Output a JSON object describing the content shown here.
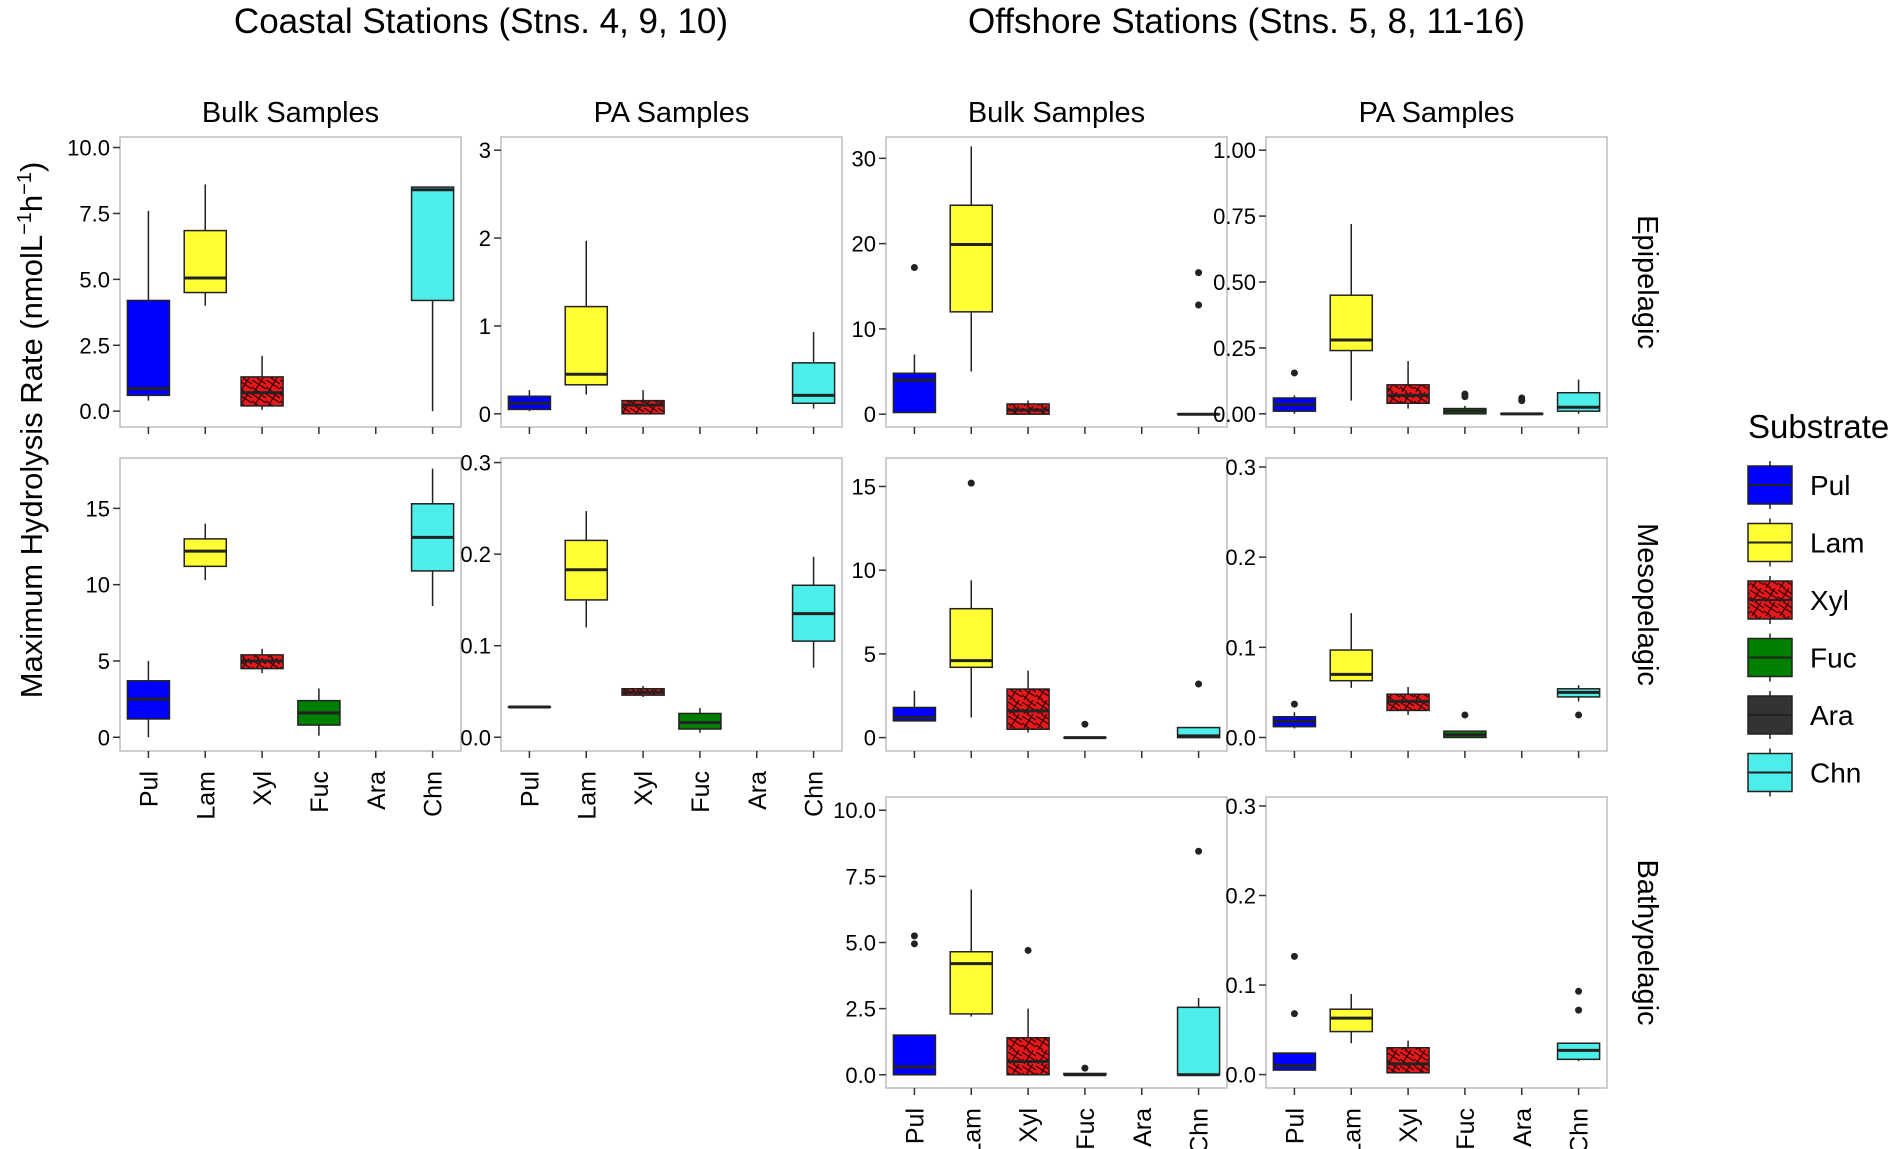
{
  "figure": {
    "y_axis_label": "Maximum Hydrolysis Rate (nmolL",
    "y_axis_unit_sup1": "−1",
    "y_axis_unit_h": "h",
    "y_axis_unit_sup2": "−1",
    "y_axis_close": ")",
    "legend_title": "Substrate"
  },
  "chart_data": {
    "type": "box",
    "categories": [
      "Pul",
      "Lam",
      "Xyl",
      "Fuc",
      "Ara",
      "Chn"
    ],
    "legend": [
      {
        "label": "Pul",
        "color": "#0000ff"
      },
      {
        "label": "Lam",
        "color": "#ffff33"
      },
      {
        "label": "Xyl",
        "color": "#e41a1c"
      },
      {
        "label": "Fuc",
        "color": "#008000"
      },
      {
        "label": "Ara",
        "color": "#333333"
      },
      {
        "label": "Chn",
        "color": "#4deeea"
      }
    ],
    "groups": [
      {
        "title": "Coastal Stations (Stns. 4, 9, 10)"
      },
      {
        "title": "Offshore Stations (Stns. 5, 8, 11-16)"
      }
    ],
    "column_titles": [
      "Bulk Samples",
      "PA Samples",
      "Bulk Samples",
      "PA Samples"
    ],
    "row_labels": [
      "Epipelagic",
      "Mesopelagic",
      "Bathypelagic"
    ],
    "panels": [
      {
        "id": "coastal-bulk-epi",
        "group": 0,
        "col": 0,
        "row": 0,
        "ylim": [
          -0.6,
          10.4
        ],
        "ticks": [
          0,
          2.5,
          5,
          7.5,
          10
        ],
        "tick_labels": [
          "0.0",
          "2.5",
          "5.0",
          "7.5",
          "10.0"
        ],
        "boxes": [
          {
            "cat": "Pul",
            "min": 0.4,
            "q1": 0.6,
            "median": 0.85,
            "q3": 4.2,
            "max": 7.6
          },
          {
            "cat": "Lam",
            "min": 4.0,
            "q1": 4.5,
            "median": 5.05,
            "q3": 6.85,
            "max": 8.6
          },
          {
            "cat": "Xyl",
            "min": 0.05,
            "q1": 0.2,
            "median": 0.7,
            "q3": 1.3,
            "max": 2.1
          },
          {
            "cat": "Chn",
            "min": 0.0,
            "q1": 4.2,
            "median": 8.4,
            "q3": 8.5,
            "max": 8.5
          }
        ]
      },
      {
        "id": "coastal-pa-epi",
        "group": 0,
        "col": 1,
        "row": 0,
        "ylim": [
          -0.15,
          3.15
        ],
        "ticks": [
          0,
          1,
          2,
          3
        ],
        "tick_labels": [
          "0",
          "1",
          "2",
          "3"
        ],
        "boxes": [
          {
            "cat": "Pul",
            "min": 0.03,
            "q1": 0.05,
            "median": 0.12,
            "q3": 0.2,
            "max": 0.27
          },
          {
            "cat": "Lam",
            "min": 0.22,
            "q1": 0.33,
            "median": 0.45,
            "q3": 1.22,
            "max": 1.97
          },
          {
            "cat": "Xyl",
            "min": 0.0,
            "q1": 0.0,
            "median": 0.1,
            "q3": 0.15,
            "max": 0.27
          },
          {
            "cat": "Chn",
            "min": 0.06,
            "q1": 0.12,
            "median": 0.21,
            "q3": 0.58,
            "max": 0.93
          }
        ]
      },
      {
        "id": "offshore-bulk-epi",
        "group": 1,
        "col": 2,
        "row": 0,
        "ylim": [
          -1.5,
          32.5
        ],
        "ticks": [
          0,
          10,
          20,
          30
        ],
        "tick_labels": [
          "0",
          "10",
          "20",
          "30"
        ],
        "boxes": [
          {
            "cat": "Pul",
            "min": 0.2,
            "q1": 0.2,
            "median": 4.0,
            "q3": 4.8,
            "max": 7.0,
            "outliers": [
              17.2
            ]
          },
          {
            "cat": "Lam",
            "min": 5.0,
            "q1": 12.0,
            "median": 19.9,
            "q3": 24.5,
            "max": 31.4
          },
          {
            "cat": "Xyl",
            "min": 0.0,
            "q1": 0.0,
            "median": 0.5,
            "q3": 1.2,
            "max": 1.6
          },
          {
            "cat": "Chn",
            "min": 0.0,
            "q1": 0.0,
            "median": 0.0,
            "q3": 0.0,
            "max": 0.0,
            "outliers": [
              12.8,
              16.6
            ]
          }
        ]
      },
      {
        "id": "offshore-pa-epi",
        "group": 1,
        "col": 3,
        "row": 0,
        "ylim": [
          -0.05,
          1.05
        ],
        "ticks": [
          0,
          0.25,
          0.5,
          0.75,
          1
        ],
        "tick_labels": [
          "0.00",
          "0.25",
          "0.50",
          "0.75",
          "1.00"
        ],
        "boxes": [
          {
            "cat": "Pul",
            "min": 0.0,
            "q1": 0.01,
            "median": 0.035,
            "q3": 0.06,
            "max": 0.07,
            "outliers": [
              0.155
            ]
          },
          {
            "cat": "Lam",
            "min": 0.05,
            "q1": 0.24,
            "median": 0.28,
            "q3": 0.45,
            "max": 0.72
          },
          {
            "cat": "Xyl",
            "min": 0.02,
            "q1": 0.04,
            "median": 0.07,
            "q3": 0.11,
            "max": 0.2
          },
          {
            "cat": "Fuc",
            "min": 0.0,
            "q1": 0.0,
            "median": 0.01,
            "q3": 0.02,
            "max": 0.03,
            "outliers": [
              0.065,
              0.075
            ]
          },
          {
            "cat": "Ara",
            "min": 0.0,
            "q1": 0.0,
            "median": 0.0,
            "q3": 0.0,
            "max": 0.0,
            "outliers": [
              0.05,
              0.06
            ]
          },
          {
            "cat": "Chn",
            "min": 0.0,
            "q1": 0.01,
            "median": 0.025,
            "q3": 0.08,
            "max": 0.13
          }
        ]
      },
      {
        "id": "coastal-bulk-meso",
        "group": 0,
        "col": 0,
        "row": 1,
        "ylim": [
          -0.9,
          18.3
        ],
        "ticks": [
          0,
          5,
          10,
          15
        ],
        "tick_labels": [
          "0",
          "5",
          "10",
          "15"
        ],
        "show_x_labels": true,
        "boxes": [
          {
            "cat": "Pul",
            "min": 0.0,
            "q1": 1.2,
            "median": 2.5,
            "q3": 3.7,
            "max": 5.0
          },
          {
            "cat": "Lam",
            "min": 10.3,
            "q1": 11.2,
            "median": 12.2,
            "q3": 13.0,
            "max": 14.0
          },
          {
            "cat": "Xyl",
            "min": 4.2,
            "q1": 4.5,
            "median": 5.0,
            "q3": 5.4,
            "max": 5.8
          },
          {
            "cat": "Fuc",
            "min": 0.1,
            "q1": 0.8,
            "median": 1.6,
            "q3": 2.4,
            "max": 3.2
          },
          {
            "cat": "Chn",
            "min": 8.6,
            "q1": 10.9,
            "median": 13.1,
            "q3": 15.3,
            "max": 17.6
          }
        ]
      },
      {
        "id": "coastal-pa-meso",
        "group": 0,
        "col": 1,
        "row": 1,
        "ylim": [
          -0.015,
          0.305
        ],
        "ticks": [
          0,
          0.1,
          0.2,
          0.3
        ],
        "tick_labels": [
          "0.0",
          "0.1",
          "0.2",
          "0.3"
        ],
        "show_x_labels": true,
        "boxes": [
          {
            "cat": "Pul",
            "min": 0.033,
            "q1": 0.033,
            "median": 0.033,
            "q3": 0.033,
            "max": 0.033
          },
          {
            "cat": "Lam",
            "min": 0.12,
            "q1": 0.15,
            "median": 0.183,
            "q3": 0.215,
            "max": 0.247
          },
          {
            "cat": "Xyl",
            "min": 0.044,
            "q1": 0.046,
            "median": 0.049,
            "q3": 0.053,
            "max": 0.056
          },
          {
            "cat": "Fuc",
            "min": 0.005,
            "q1": 0.009,
            "median": 0.016,
            "q3": 0.026,
            "max": 0.032
          },
          {
            "cat": "Chn",
            "min": 0.076,
            "q1": 0.105,
            "median": 0.135,
            "q3": 0.166,
            "max": 0.197
          }
        ]
      },
      {
        "id": "offshore-bulk-meso",
        "group": 1,
        "col": 2,
        "row": 1,
        "ylim": [
          -0.8,
          16.7
        ],
        "ticks": [
          0,
          5,
          10,
          15
        ],
        "tick_labels": [
          "0",
          "5",
          "10",
          "15"
        ],
        "boxes": [
          {
            "cat": "Pul",
            "min": 1.0,
            "q1": 1.0,
            "median": 1.2,
            "q3": 1.8,
            "max": 2.8
          },
          {
            "cat": "Lam",
            "min": 1.2,
            "q1": 4.2,
            "median": 4.6,
            "q3": 7.7,
            "max": 9.4,
            "outliers": [
              15.2
            ]
          },
          {
            "cat": "Xyl",
            "min": 0.3,
            "q1": 0.5,
            "median": 1.6,
            "q3": 2.9,
            "max": 4.0
          },
          {
            "cat": "Fuc",
            "min": 0.0,
            "q1": 0.0,
            "median": 0.0,
            "q3": 0.0,
            "max": 0.0,
            "outliers": [
              0.8
            ]
          },
          {
            "cat": "Chn",
            "min": 0.0,
            "q1": 0.0,
            "median": 0.1,
            "q3": 0.6,
            "max": 0.6,
            "outliers": [
              3.2
            ]
          }
        ]
      },
      {
        "id": "offshore-pa-meso",
        "group": 1,
        "col": 3,
        "row": 1,
        "ylim": [
          -0.015,
          0.31
        ],
        "ticks": [
          0,
          0.1,
          0.2,
          0.3
        ],
        "tick_labels": [
          "0.0",
          "0.1",
          "0.2",
          "0.3"
        ],
        "boxes": [
          {
            "cat": "Pul",
            "min": 0.01,
            "q1": 0.012,
            "median": 0.018,
            "q3": 0.023,
            "max": 0.028,
            "outliers": [
              0.037
            ]
          },
          {
            "cat": "Lam",
            "min": 0.055,
            "q1": 0.063,
            "median": 0.07,
            "q3": 0.097,
            "max": 0.138
          },
          {
            "cat": "Xyl",
            "min": 0.025,
            "q1": 0.03,
            "median": 0.04,
            "q3": 0.048,
            "max": 0.056
          },
          {
            "cat": "Fuc",
            "min": 0.0,
            "q1": 0.0,
            "median": 0.003,
            "q3": 0.007,
            "max": 0.007,
            "outliers": [
              0.025
            ]
          },
          {
            "cat": "Chn",
            "min": 0.04,
            "q1": 0.045,
            "median": 0.05,
            "q3": 0.054,
            "max": 0.058,
            "outliers": [
              0.025
            ]
          }
        ]
      },
      {
        "id": "offshore-bulk-bathy",
        "group": 1,
        "col": 2,
        "row": 2,
        "ylim": [
          -0.5,
          10.5
        ],
        "ticks": [
          0,
          2.5,
          5,
          7.5,
          10
        ],
        "tick_labels": [
          "0.0",
          "2.5",
          "5.0",
          "7.5",
          "10.0"
        ],
        "show_x_labels": true,
        "boxes": [
          {
            "cat": "Pul",
            "min": 0.0,
            "q1": 0.0,
            "median": 0.3,
            "q3": 1.5,
            "max": 1.5,
            "outliers": [
              4.95,
              5.25
            ]
          },
          {
            "cat": "Lam",
            "min": 2.2,
            "q1": 2.3,
            "median": 4.2,
            "q3": 4.65,
            "max": 7.0
          },
          {
            "cat": "Xyl",
            "min": 0.0,
            "q1": 0.0,
            "median": 0.5,
            "q3": 1.4,
            "max": 2.5,
            "outliers": [
              4.7
            ]
          },
          {
            "cat": "Fuc",
            "min": 0.0,
            "q1": 0.0,
            "median": 0.0,
            "q3": 0.05,
            "max": 0.05,
            "outliers": [
              0.25
            ]
          },
          {
            "cat": "Chn",
            "min": 0.0,
            "q1": 0.0,
            "median": 0.0,
            "q3": 2.55,
            "max": 2.9,
            "outliers": [
              8.45
            ]
          }
        ]
      },
      {
        "id": "offshore-pa-bathy",
        "group": 1,
        "col": 3,
        "row": 2,
        "ylim": [
          -0.015,
          0.31
        ],
        "ticks": [
          0,
          0.1,
          0.2,
          0.3
        ],
        "tick_labels": [
          "0.0",
          "0.1",
          "0.2",
          "0.3"
        ],
        "show_x_labels": true,
        "boxes": [
          {
            "cat": "Pul",
            "min": 0.005,
            "q1": 0.005,
            "median": 0.01,
            "q3": 0.024,
            "max": 0.024,
            "outliers": [
              0.068,
              0.132
            ]
          },
          {
            "cat": "Lam",
            "min": 0.035,
            "q1": 0.048,
            "median": 0.063,
            "q3": 0.073,
            "max": 0.09
          },
          {
            "cat": "Xyl",
            "min": 0.002,
            "q1": 0.002,
            "median": 0.012,
            "q3": 0.03,
            "max": 0.038
          },
          {
            "cat": "Chn",
            "min": 0.015,
            "q1": 0.017,
            "median": 0.027,
            "q3": 0.035,
            "max": 0.035,
            "outliers": [
              0.072,
              0.093
            ]
          }
        ]
      }
    ]
  }
}
